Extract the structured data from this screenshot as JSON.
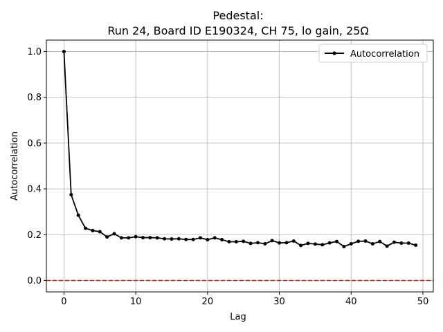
{
  "chart_data": {
    "type": "line",
    "title_line1": "Pedestal:",
    "title_line2": "Run 24, Board ID E190324, CH 75, lo gain, 25Ω",
    "xlabel": "Lag",
    "ylabel": "Autocorrelation",
    "xlim": [
      -2.45,
      51.45
    ],
    "ylim": [
      -0.05,
      1.05
    ],
    "xticks": [
      0,
      10,
      20,
      30,
      40,
      50
    ],
    "yticks": [
      0.0,
      0.2,
      0.4,
      0.6,
      0.8,
      1.0
    ],
    "xtick_labels": [
      "0",
      "10",
      "20",
      "30",
      "40",
      "50"
    ],
    "ytick_labels": [
      "0.0",
      "0.2",
      "0.4",
      "0.6",
      "0.8",
      "1.0"
    ],
    "grid": true,
    "legend_position": "top-right",
    "series": [
      {
        "name": "Autocorrelation",
        "color": "#000000",
        "marker": "circle",
        "x": [
          0,
          1,
          2,
          3,
          4,
          5,
          6,
          7,
          8,
          9,
          10,
          11,
          12,
          13,
          14,
          15,
          16,
          17,
          18,
          19,
          20,
          21,
          22,
          23,
          24,
          25,
          26,
          27,
          28,
          29,
          30,
          31,
          32,
          33,
          34,
          35,
          36,
          37,
          38,
          39,
          40,
          41,
          42,
          43,
          44,
          45,
          46,
          47,
          48,
          49
        ],
        "y": [
          1.0,
          0.375,
          0.285,
          0.228,
          0.218,
          0.213,
          0.19,
          0.204,
          0.186,
          0.186,
          0.191,
          0.187,
          0.187,
          0.186,
          0.182,
          0.181,
          0.182,
          0.179,
          0.179,
          0.186,
          0.178,
          0.186,
          0.178,
          0.169,
          0.169,
          0.171,
          0.162,
          0.165,
          0.16,
          0.174,
          0.164,
          0.165,
          0.172,
          0.153,
          0.162,
          0.159,
          0.156,
          0.164,
          0.17,
          0.148,
          0.16,
          0.171,
          0.172,
          0.16,
          0.17,
          0.15,
          0.167,
          0.163,
          0.163,
          0.154
        ]
      }
    ],
    "reference_line": {
      "y": 0.0,
      "color": "#ff0000",
      "style": "dashed"
    }
  }
}
